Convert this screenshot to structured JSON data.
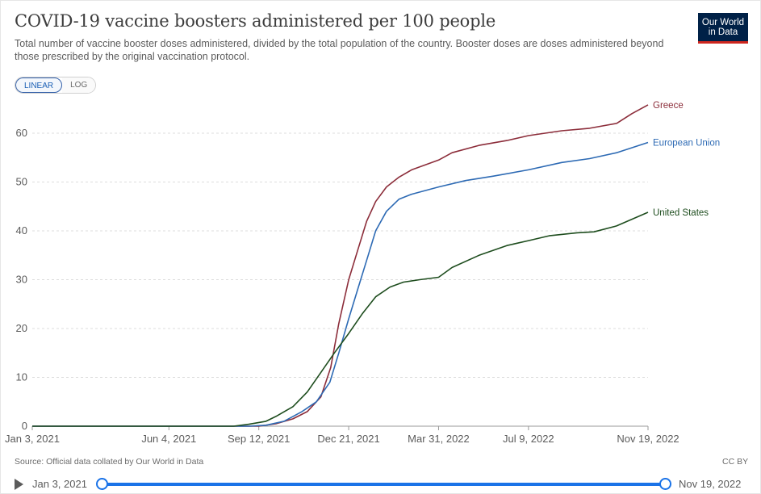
{
  "header": {
    "title": "COVID-19 vaccine boosters administered per 100 people",
    "subtitle": "Total number of vaccine booster doses administered, divided by the total population of the country. Booster doses are doses administered beyond those prescribed by the original vaccination protocol.",
    "logo_line1": "Our World",
    "logo_line2": "in Data"
  },
  "scale_toggle": {
    "linear_label": "LINEAR",
    "log_label": "LOG",
    "selected": "LINEAR"
  },
  "footer": {
    "source": "Source: Official data collated by Our World in Data",
    "license": "CC BY"
  },
  "timeline": {
    "start_label": "Jan 3, 2021",
    "end_label": "Nov 19, 2022"
  },
  "chart_data": {
    "type": "line",
    "title": "COVID-19 vaccine boosters administered per 100 people",
    "xlabel": "",
    "ylabel": "",
    "ylim": [
      0,
      60
    ],
    "y_ticks": [
      0,
      10,
      20,
      30,
      40,
      50,
      60
    ],
    "x_ticks": [
      "Jan 3, 2021",
      "Jun 4, 2021",
      "Sep 12, 2021",
      "Dec 21, 2021",
      "Mar 31, 2022",
      "Jul 9, 2022",
      "Nov 19, 2022"
    ],
    "x_range": [
      "2021-01-03",
      "2022-11-19"
    ],
    "grid": "horizontal dashed",
    "legend": "inline labels at line ends",
    "series": [
      {
        "name": "Greece",
        "color": "#8c2d3a",
        "points": [
          [
            "2021-01-03",
            0
          ],
          [
            "2021-09-12",
            0
          ],
          [
            "2021-10-01",
            0.5
          ],
          [
            "2021-10-20",
            1.5
          ],
          [
            "2021-11-05",
            3
          ],
          [
            "2021-11-20",
            6
          ],
          [
            "2021-12-01",
            12
          ],
          [
            "2021-12-10",
            21
          ],
          [
            "2021-12-21",
            30
          ],
          [
            "2021-12-31",
            36
          ],
          [
            "2022-01-10",
            42
          ],
          [
            "2022-01-20",
            46
          ],
          [
            "2022-02-01",
            49
          ],
          [
            "2022-02-15",
            51
          ],
          [
            "2022-03-01",
            52.5
          ],
          [
            "2022-03-31",
            54.5
          ],
          [
            "2022-04-15",
            56
          ],
          [
            "2022-05-15",
            57.5
          ],
          [
            "2022-06-15",
            58.5
          ],
          [
            "2022-07-09",
            59.5
          ],
          [
            "2022-08-15",
            60.5
          ],
          [
            "2022-09-15",
            61
          ],
          [
            "2022-10-15",
            62
          ],
          [
            "2022-11-01",
            64
          ],
          [
            "2022-11-19",
            65.8
          ]
        ]
      },
      {
        "name": "European Union",
        "color": "#2d6ab4",
        "points": [
          [
            "2021-01-03",
            0
          ],
          [
            "2021-09-01",
            0
          ],
          [
            "2021-09-20",
            0.2
          ],
          [
            "2021-10-10",
            1
          ],
          [
            "2021-10-30",
            3
          ],
          [
            "2021-11-15",
            5
          ],
          [
            "2021-11-30",
            9
          ],
          [
            "2021-12-10",
            15
          ],
          [
            "2021-12-21",
            22
          ],
          [
            "2021-12-31",
            28
          ],
          [
            "2022-01-10",
            34
          ],
          [
            "2022-01-20",
            40
          ],
          [
            "2022-02-01",
            44
          ],
          [
            "2022-02-15",
            46.5
          ],
          [
            "2022-03-01",
            47.5
          ],
          [
            "2022-03-31",
            49
          ],
          [
            "2022-04-30",
            50.3
          ],
          [
            "2022-05-31",
            51.2
          ],
          [
            "2022-07-09",
            52.5
          ],
          [
            "2022-08-15",
            54
          ],
          [
            "2022-09-15",
            54.8
          ],
          [
            "2022-10-15",
            56
          ],
          [
            "2022-11-19",
            58.1
          ]
        ]
      },
      {
        "name": "United States",
        "color": "#1e4d1e",
        "points": [
          [
            "2021-01-03",
            0
          ],
          [
            "2021-08-15",
            0
          ],
          [
            "2021-09-01",
            0.4
          ],
          [
            "2021-09-20",
            1
          ],
          [
            "2021-10-01",
            2
          ],
          [
            "2021-10-20",
            4
          ],
          [
            "2021-11-05",
            7
          ],
          [
            "2021-11-20",
            11
          ],
          [
            "2021-12-05",
            15
          ],
          [
            "2021-12-21",
            19
          ],
          [
            "2022-01-05",
            23
          ],
          [
            "2022-01-20",
            26.5
          ],
          [
            "2022-02-05",
            28.5
          ],
          [
            "2022-02-20",
            29.5
          ],
          [
            "2022-03-10",
            30
          ],
          [
            "2022-03-31",
            30.5
          ],
          [
            "2022-04-15",
            32.5
          ],
          [
            "2022-05-15",
            35
          ],
          [
            "2022-06-15",
            37
          ],
          [
            "2022-07-09",
            38
          ],
          [
            "2022-08-01",
            39
          ],
          [
            "2022-09-01",
            39.6
          ],
          [
            "2022-09-20",
            39.8
          ],
          [
            "2022-10-15",
            41
          ],
          [
            "2022-11-19",
            43.8
          ]
        ]
      }
    ]
  }
}
